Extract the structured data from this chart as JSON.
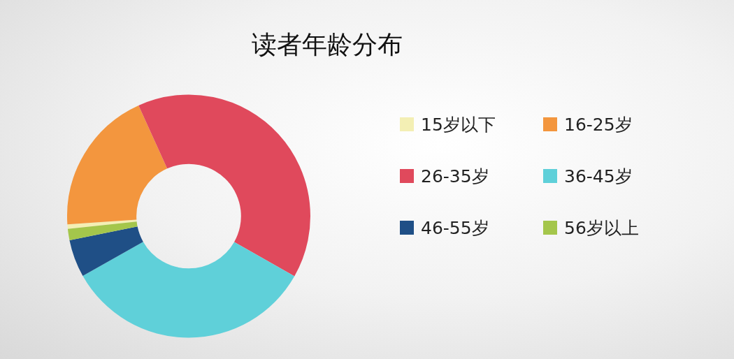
{
  "chart_data": {
    "type": "donut",
    "title": "读者年龄分布",
    "categories": [
      "15岁以下",
      "16-25岁",
      "26-35岁",
      "36-45岁",
      "46-55岁",
      "56岁以上"
    ],
    "values": [
      0.6,
      19.3,
      40,
      33.6,
      5,
      1.5
    ],
    "colors": [
      "#f3efb4",
      "#f3963e",
      "#e0495c",
      "#5fd0d9",
      "#1f4f86",
      "#a4c64b"
    ],
    "legend": "right"
  }
}
